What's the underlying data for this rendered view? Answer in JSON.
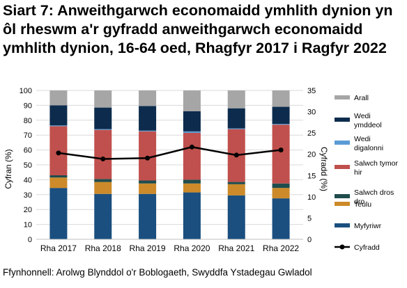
{
  "title": "Siart 7: Anweithgarwch economaidd ymhlith dynion yn ôl rheswm a'r gyfradd anweithgarwch economaidd ymhlith dynion, 16-64 oed, Rhagfyr 2017 i Ragfyr 2022",
  "source": "Ffynhonnell: Arolwg Blynddol o'r Boblogaeth, Swyddfa Ystadegau Gwladol",
  "chart_data": {
    "type": "bar",
    "stacked": true,
    "categories": [
      "Rha 2017",
      "Rha 2018",
      "Rha 2019",
      "Rha 2020",
      "Rha 2021",
      "Rha 2022"
    ],
    "ylabel": "Cyfran (%)",
    "ylim": [
      0,
      100
    ],
    "yticks": [
      0,
      10,
      20,
      30,
      40,
      50,
      60,
      70,
      80,
      90,
      100
    ],
    "y2label": "Cyfradd (%)",
    "y2lim": [
      0,
      35
    ],
    "y2ticks": [
      0,
      5,
      10,
      15,
      20,
      25,
      30,
      35
    ],
    "grid": true,
    "legend_position": "right",
    "series": [
      {
        "name": "Myfyriwr",
        "color": "#1a4f7f",
        "values": [
          34.5,
          30.5,
          30.5,
          31.5,
          29.5,
          27.5
        ]
      },
      {
        "name": "Teulu",
        "color": "#cc8a2a",
        "values": [
          7,
          8,
          7,
          6,
          7.5,
          7
        ]
      },
      {
        "name": "Salwch dros dro",
        "color": "#1f4c4c",
        "values": [
          1.5,
          2,
          2,
          2.5,
          1.5,
          3
        ]
      },
      {
        "name": "Salwch tymor hir",
        "color": "#c0504d",
        "values": [
          33,
          33,
          33,
          31.5,
          35.5,
          39.5
        ]
      },
      {
        "name": "Wedi digalonni",
        "color": "#5b9bd5",
        "values": [
          0.5,
          0.5,
          0.5,
          1,
          0.5,
          0.5
        ]
      },
      {
        "name": "Wedi ymddeol",
        "color": "#0d2c4d",
        "values": [
          13.5,
          14.5,
          16.5,
          13.5,
          13.5,
          11.5
        ]
      },
      {
        "name": "Arall",
        "color": "#a6a6a6",
        "values": [
          10,
          11.5,
          10.5,
          14,
          12,
          11
        ]
      }
    ],
    "line": {
      "name": "Cyfradd",
      "axis": "right",
      "color": "#000000",
      "values": [
        20.3,
        18.9,
        19.1,
        21.7,
        19.8,
        21.0
      ]
    }
  }
}
